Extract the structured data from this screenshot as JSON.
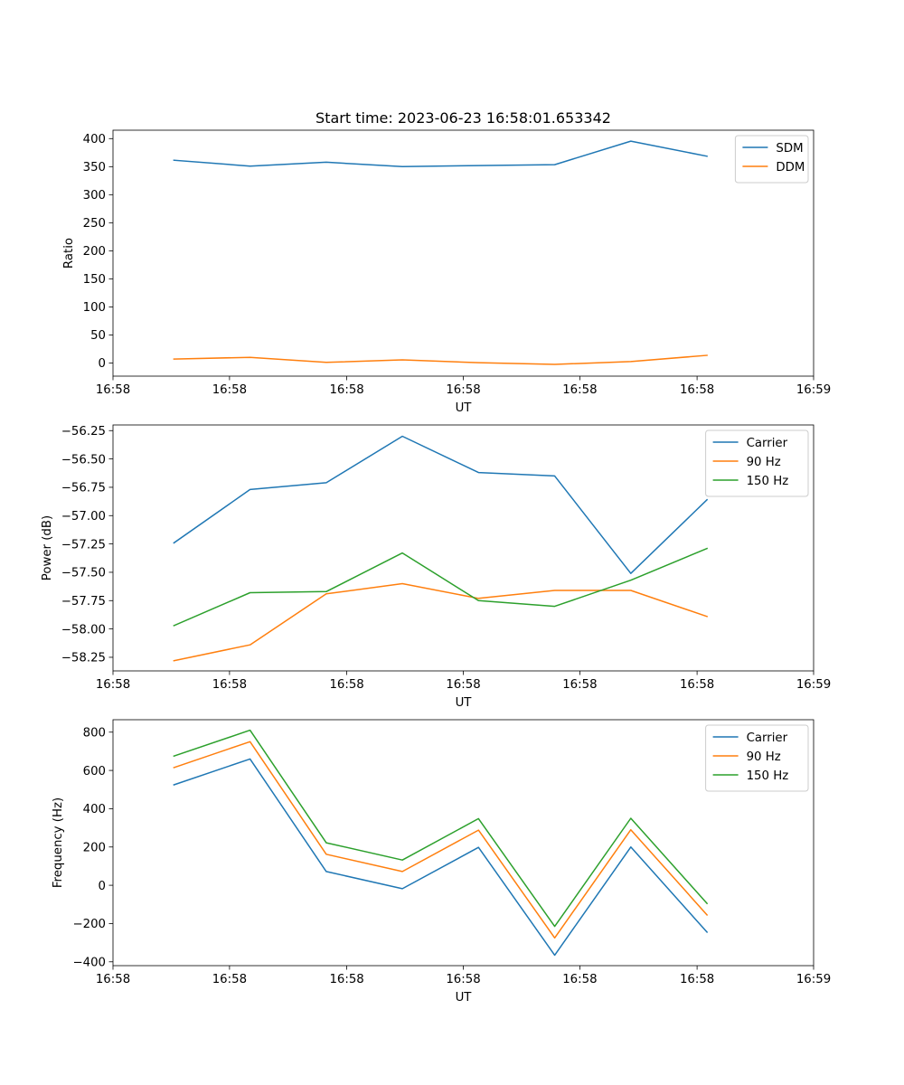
{
  "figure": {
    "title": "Start time: 2023-06-23 16:58:01.653342"
  },
  "colors": {
    "blue": "#1f77b4",
    "orange": "#ff7f0e",
    "green": "#2ca02c"
  },
  "chart_data": [
    {
      "type": "line",
      "title": "Start time: 2023-06-23 16:58:01.653342",
      "xlabel": "UT",
      "ylabel": "Ratio",
      "x": [
        1,
        2,
        3,
        4,
        5,
        6,
        7,
        8
      ],
      "xlim": [
        0.2,
        9.4
      ],
      "x_ticks": [
        {
          "v": 0.2,
          "label": "16:58"
        },
        {
          "v": 1.73,
          "label": "16:58"
        },
        {
          "v": 3.27,
          "label": "16:58"
        },
        {
          "v": 4.8,
          "label": "16:58"
        },
        {
          "v": 6.33,
          "label": "16:58"
        },
        {
          "v": 7.87,
          "label": "16:58"
        },
        {
          "v": 9.4,
          "label": "16:59"
        }
      ],
      "ylim": [
        -23.5,
        415
      ],
      "y_ticks": [
        0,
        50,
        100,
        150,
        200,
        250,
        300,
        350,
        400
      ],
      "y_tick_labels": [
        "0",
        "50",
        "100",
        "150",
        "200",
        "250",
        "300",
        "350",
        "400"
      ],
      "legend": "upper right",
      "series": [
        {
          "name": "SDM",
          "color": "#1f77b4",
          "values": [
            361.5,
            351,
            358,
            350,
            352,
            353.5,
            395.5,
            368.5
          ]
        },
        {
          "name": "DDM",
          "color": "#ff7f0e",
          "values": [
            7,
            10,
            1,
            5.5,
            0.5,
            -2.5,
            2.5,
            13.5
          ]
        }
      ]
    },
    {
      "type": "line",
      "title": "",
      "xlabel": "UT",
      "ylabel": "Power (dB)",
      "x": [
        1,
        2,
        3,
        4,
        5,
        6,
        7,
        8
      ],
      "xlim": [
        0.2,
        9.4
      ],
      "x_ticks": [
        {
          "v": 0.2,
          "label": "16:58"
        },
        {
          "v": 1.73,
          "label": "16:58"
        },
        {
          "v": 3.27,
          "label": "16:58"
        },
        {
          "v": 4.8,
          "label": "16:58"
        },
        {
          "v": 6.33,
          "label": "16:58"
        },
        {
          "v": 7.87,
          "label": "16:58"
        },
        {
          "v": 9.4,
          "label": "16:59"
        }
      ],
      "ylim": [
        -58.37,
        -56.2
      ],
      "y_ticks": [
        -58.25,
        -58.0,
        -57.75,
        -57.5,
        -57.25,
        -57.0,
        -56.75,
        -56.5,
        -56.25
      ],
      "y_tick_labels": [
        "−58.25",
        "−58.00",
        "−57.75",
        "−57.50",
        "−57.25",
        "−57.00",
        "−56.75",
        "−56.50",
        "−56.25"
      ],
      "legend": "upper right",
      "series": [
        {
          "name": "Carrier",
          "color": "#1f77b4",
          "values": [
            -57.24,
            -56.77,
            -56.71,
            -56.3,
            -56.62,
            -56.65,
            -57.51,
            -56.86
          ]
        },
        {
          "name": "90 Hz",
          "color": "#ff7f0e",
          "values": [
            -58.28,
            -58.14,
            -57.69,
            -57.6,
            -57.73,
            -57.66,
            -57.66,
            -57.89
          ]
        },
        {
          "name": "150 Hz",
          "color": "#2ca02c",
          "values": [
            -57.97,
            -57.68,
            -57.67,
            -57.33,
            -57.75,
            -57.8,
            -57.57,
            -57.29
          ]
        }
      ]
    },
    {
      "type": "line",
      "title": "",
      "xlabel": "UT",
      "ylabel": "Frequency (Hz)",
      "x": [
        1,
        2,
        3,
        4,
        5,
        6,
        7,
        8
      ],
      "xlim": [
        0.2,
        9.4
      ],
      "x_ticks": [
        {
          "v": 0.2,
          "label": "16:58"
        },
        {
          "v": 1.73,
          "label": "16:58"
        },
        {
          "v": 3.27,
          "label": "16:58"
        },
        {
          "v": 4.8,
          "label": "16:58"
        },
        {
          "v": 6.33,
          "label": "16:58"
        },
        {
          "v": 7.87,
          "label": "16:58"
        },
        {
          "v": 9.4,
          "label": "16:59"
        }
      ],
      "ylim": [
        -420,
        865
      ],
      "y_ticks": [
        -400,
        -200,
        0,
        200,
        400,
        600,
        800
      ],
      "y_tick_labels": [
        "−400",
        "−200",
        "0",
        "200",
        "400",
        "600",
        "800"
      ],
      "legend": "upper right",
      "series": [
        {
          "name": "Carrier",
          "color": "#1f77b4",
          "values": [
            525,
            660,
            72,
            -18,
            198,
            -365,
            200,
            -245
          ]
        },
        {
          "name": "90 Hz",
          "color": "#ff7f0e",
          "values": [
            615,
            750,
            162,
            72,
            288,
            -275,
            290,
            -155
          ]
        },
        {
          "name": "150 Hz",
          "color": "#2ca02c",
          "values": [
            675,
            810,
            222,
            132,
            348,
            -215,
            350,
            -95
          ]
        }
      ]
    }
  ]
}
